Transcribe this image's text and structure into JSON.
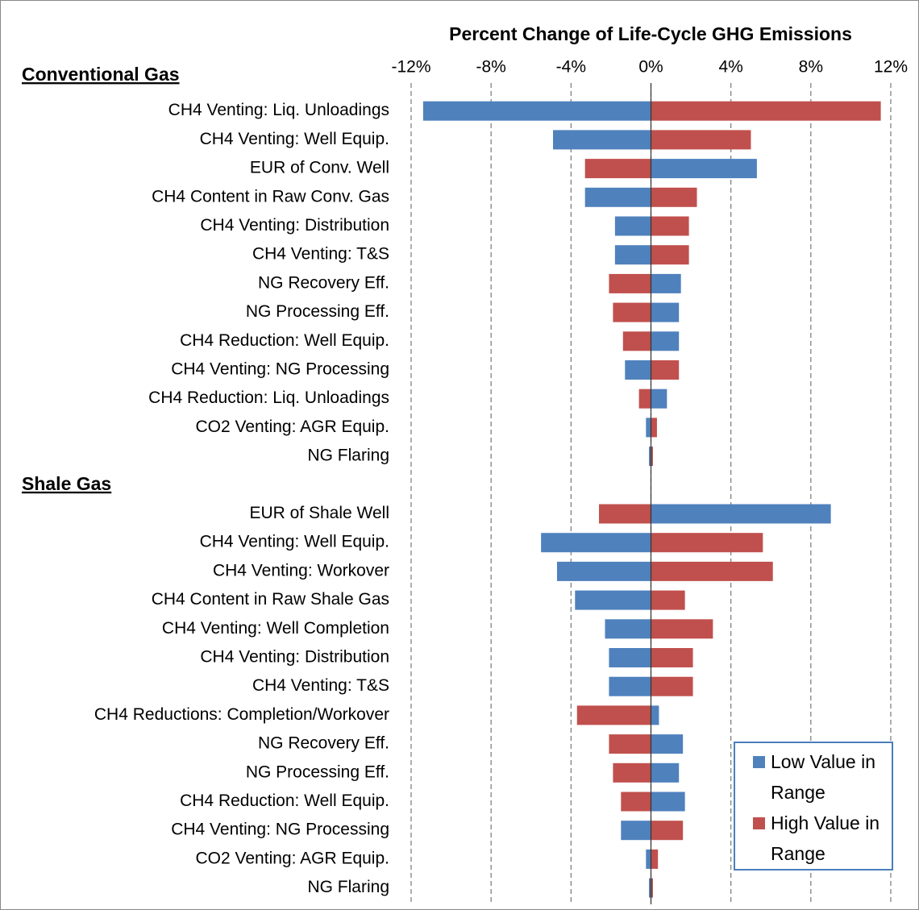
{
  "chart_data": {
    "type": "tornado",
    "title": "Percent Change of Life-Cycle GHG Emissions",
    "series": [
      {
        "name": "Low Value in Range",
        "color": "#4f81bd"
      },
      {
        "name": "High Value in Range",
        "color": "#c0504d"
      }
    ],
    "groups": [
      {
        "name": "Conventional Gas",
        "categories": [
          "CH4 Venting: Liq. Unloadings",
          "CH4 Venting: Well Equip.",
          "EUR of Conv. Well",
          "CH4 Content in Raw Conv. Gas",
          "CH4 Venting: Distribution",
          "CH4 Venting: T&S",
          "NG Recovery Eff.",
          "NG Processing Eff.",
          "CH4 Reduction: Well Equip.",
          "CH4 Venting: NG Processing",
          "CH4 Reduction: Liq. Unloadings",
          "CO2 Venting: AGR Equip.",
          "NG Flaring"
        ],
        "values": [
          [
            -11.4,
            -4.9,
            5.3,
            -3.3,
            -1.8,
            -1.8,
            1.5,
            1.4,
            1.4,
            -1.3,
            0.8,
            -0.25,
            -0.1
          ],
          [
            11.5,
            5.0,
            -3.3,
            2.3,
            1.9,
            1.9,
            -2.1,
            -1.9,
            -1.4,
            1.4,
            -0.6,
            0.3,
            0.1
          ]
        ]
      },
      {
        "name": "Shale Gas",
        "categories": [
          "EUR of Shale Well",
          "CH4 Venting: Well Equip.",
          "CH4 Venting: Workover",
          "CH4 Content in Raw Shale Gas",
          "CH4 Venting: Well Completion",
          "CH4 Venting: Distribution",
          "CH4 Venting: T&S",
          "CH4 Reductions: Completion/Workover",
          "NG Recovery Eff.",
          "NG Processing Eff.",
          "CH4 Reduction: Well Equip.",
          "CH4 Venting: NG Processing",
          "CO2 Venting: AGR Equip.",
          "NG Flaring"
        ],
        "values": [
          [
            9.0,
            -5.5,
            -4.7,
            -3.8,
            -2.3,
            -2.1,
            -2.1,
            0.4,
            1.6,
            1.4,
            1.7,
            -1.5,
            -0.25,
            -0.1
          ],
          [
            -2.6,
            5.6,
            6.1,
            1.7,
            3.1,
            2.1,
            2.1,
            -3.7,
            -2.1,
            -1.9,
            -1.5,
            1.6,
            0.35,
            0.1
          ]
        ]
      }
    ],
    "xlim": [
      -12,
      12
    ],
    "xticks": [
      {
        "value": -12,
        "label": "-12%"
      },
      {
        "value": -8,
        "label": "-8%"
      },
      {
        "value": -4,
        "label": "-4%"
      },
      {
        "value": 0,
        "label": "0%"
      },
      {
        "value": 4,
        "label": "4%"
      },
      {
        "value": 8,
        "label": "8%"
      },
      {
        "value": 12,
        "label": "12%"
      }
    ],
    "grid": true
  }
}
